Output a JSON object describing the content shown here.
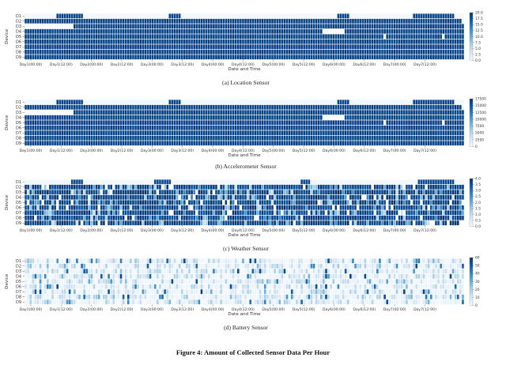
{
  "figure_caption": "Figure 4: Amount of Collected Sensor Data Per Hour",
  "colors": {
    "scale": [
      "#f7fbff",
      "#deebf7",
      "#c6dbef",
      "#9ecae1",
      "#6baed6",
      "#4292c6",
      "#2171b5",
      "#08519c",
      "#08306b"
    ],
    "gap": "#ffffff"
  },
  "chart_data": [
    {
      "type": "heatmap",
      "caption": "(a)  Location Sensor",
      "xlabel": "Date and Time",
      "ylabel": "Device",
      "devices": [
        "D1",
        "D2",
        "D3",
        "D4",
        "D5",
        "D6",
        "D7",
        "D8",
        "D9"
      ],
      "xticks": [
        "Day1(00:00)",
        "Day1(12:00)",
        "Day2(00:00)",
        "Day2(12:00)",
        "Day3(00:00)",
        "Day3(12:00)",
        "Day4(00:00)",
        "Day4(12:00)",
        "Day5(00:00)",
        "Day5(12:00)",
        "Day6(00:00)",
        "Day6(12:00)",
        "Day7(00:00)",
        "Day7(12:00)"
      ],
      "hours": 180,
      "colorbar": {
        "ticks": [
          "20.0",
          "17.5",
          "15.0",
          "12.5",
          "10.0",
          "7.5",
          "5.0",
          "2.5",
          "0.0"
        ],
        "min": 0,
        "max": 20
      },
      "pattern": "dense"
    },
    {
      "type": "heatmap",
      "caption": "(b)  Accelerometer Sensor",
      "xlabel": "Date and Time",
      "ylabel": "Device",
      "devices": [
        "D1",
        "D2",
        "D3",
        "D4",
        "D5",
        "D6",
        "D7",
        "D8",
        "D9"
      ],
      "xticks": [
        "Day1(00:00)",
        "Day1(12:00)",
        "Day2(00:00)",
        "Day2(12:00)",
        "Day3(00:00)",
        "Day3(12:00)",
        "Day4(00:00)",
        "Day4(12:00)",
        "Day5(00:00)",
        "Day5(12:00)",
        "Day6(00:00)",
        "Day6(12:00)",
        "Day7(00:00)",
        "Day7(12:00)"
      ],
      "hours": 180,
      "colorbar": {
        "ticks": [
          "17500",
          "15000",
          "12500",
          "10000",
          "7500",
          "5000",
          "2500",
          "0"
        ],
        "min": 0,
        "max": 17500
      },
      "pattern": "dense"
    },
    {
      "type": "heatmap",
      "caption": "(c)  Weather Sensor",
      "xlabel": "Date and Time",
      "ylabel": "Device",
      "devices": [
        "D1",
        "D2",
        "D3",
        "D4",
        "D5",
        "D6",
        "D7",
        "D8",
        "D9"
      ],
      "xticks": [
        "Day1(00:00)",
        "Day1(12:00)",
        "Day2(00:00)",
        "Day2(12:00)",
        "Day3(00:00)",
        "Day3(12:00)",
        "Day4(00:00)",
        "Day4(12:00)",
        "Day5(00:00)",
        "Day5(12:00)",
        "Day6(00:00)",
        "Day6(12:00)",
        "Day7(00:00)",
        "Day7(12:00)"
      ],
      "hours": 180,
      "colorbar": {
        "ticks": [
          "4.0",
          "3.5",
          "3.0",
          "2.5",
          "2.0",
          "1.5",
          "1.0",
          "0.5",
          "0.0"
        ],
        "min": 0,
        "max": 4
      },
      "pattern": "mixed"
    },
    {
      "type": "heatmap",
      "caption": "(d)  Battery Sensor",
      "xlabel": "Date and Time",
      "ylabel": "Device",
      "devices": [
        "D1",
        "D2",
        "D3",
        "D4",
        "D5",
        "D6",
        "D7",
        "D8",
        "D9"
      ],
      "xticks": [
        "Day1(00:00)",
        "Day1(12:00)",
        "Day2(00:00)",
        "Day2(12:00)",
        "Day3(00:00)",
        "Day3(12:00)",
        "Day4(00:00)",
        "Day4(12:00)",
        "Day5(00:00)",
        "Day5(12:00)",
        "Day6(00:00)",
        "Day6(12:00)",
        "Day7(00:00)",
        "Day7(12:00)"
      ],
      "hours": 180,
      "colorbar": {
        "ticks": [
          "60",
          "50",
          "40",
          "30",
          "20",
          "10",
          "0"
        ],
        "min": 0,
        "max": 60
      },
      "pattern": "sparse"
    }
  ]
}
